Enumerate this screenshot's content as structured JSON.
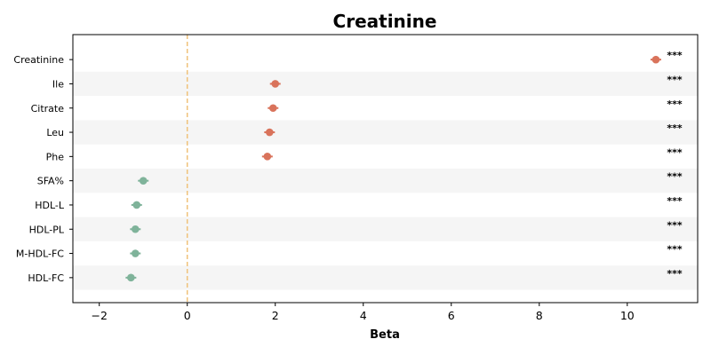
{
  "chart_data": {
    "type": "scatter",
    "title": "Creatinine",
    "xlabel": "Beta",
    "ylabel": "",
    "xlim": [
      -2.6,
      11.6
    ],
    "xticks": [
      -2,
      0,
      2,
      4,
      6,
      8,
      10
    ],
    "xtick_labels": [
      "−2",
      "0",
      "2",
      "4",
      "6",
      "8",
      "10"
    ],
    "reference_line": 0,
    "row_shading": "alternating",
    "grid": false,
    "colors": {
      "positive": "#d9735b",
      "negative": "#7fb39a",
      "reference": "#f0c27a",
      "shade": "#f5f5f5"
    },
    "points": [
      {
        "label": "Creatinine",
        "beta": 10.65,
        "significance": "***"
      },
      {
        "label": "Ile",
        "beta": 2.0,
        "significance": "***"
      },
      {
        "label": "Citrate",
        "beta": 1.95,
        "significance": "***"
      },
      {
        "label": "Leu",
        "beta": 1.87,
        "significance": "***"
      },
      {
        "label": "Phe",
        "beta": 1.82,
        "significance": "***"
      },
      {
        "label": "SFA%",
        "beta": -1.0,
        "significance": "***"
      },
      {
        "label": "HDL-L",
        "beta": -1.15,
        "significance": "***"
      },
      {
        "label": "HDL-PL",
        "beta": -1.18,
        "significance": "***"
      },
      {
        "label": "M-HDL-FC",
        "beta": -1.18,
        "significance": "***"
      },
      {
        "label": "HDL-FC",
        "beta": -1.28,
        "significance": "***"
      }
    ]
  }
}
